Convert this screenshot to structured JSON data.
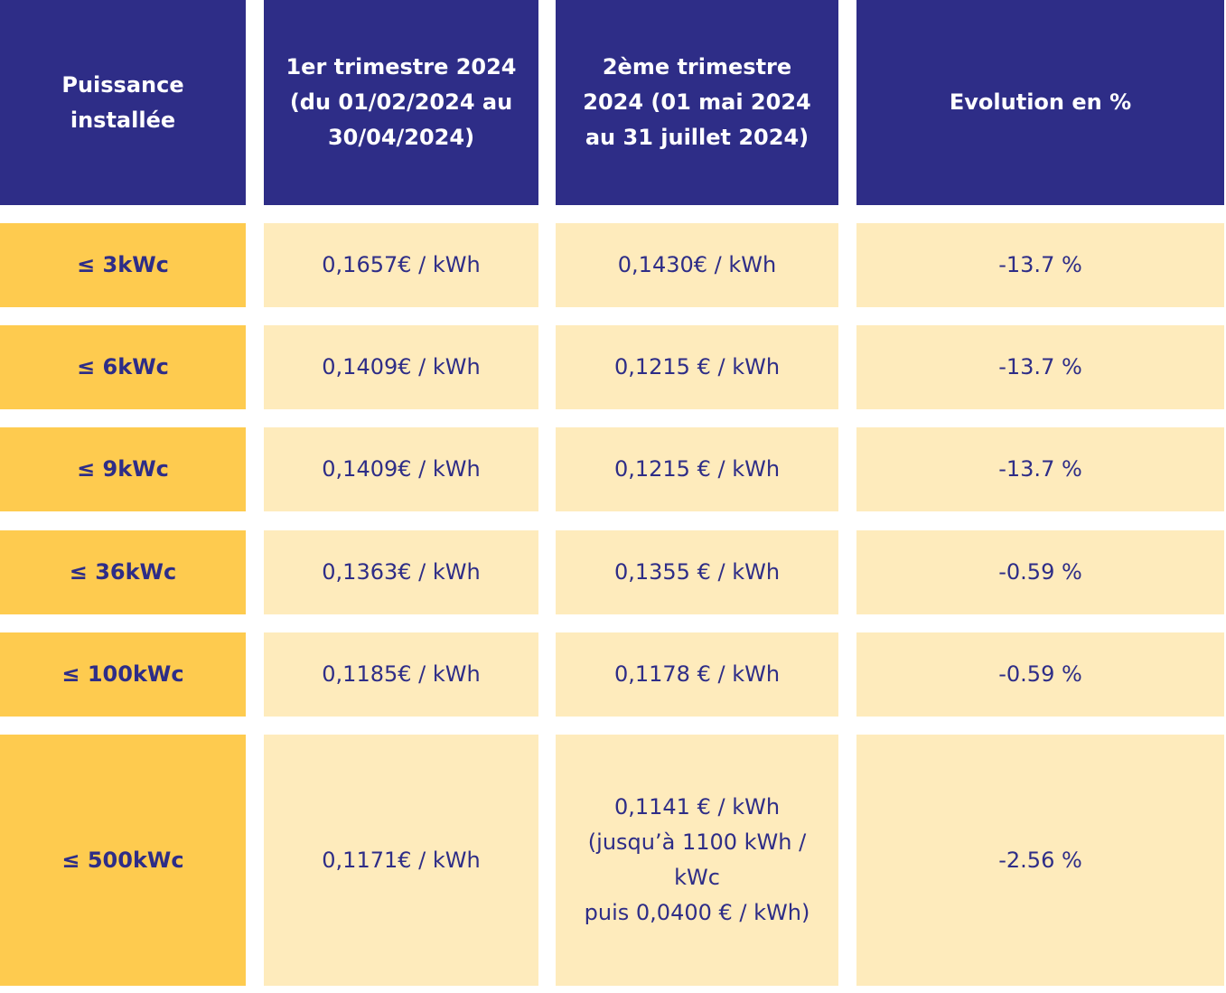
{
  "table": {
    "header": [
      "Puissance installée",
      "1er trimestre 2024 (du 01/02/2024 au 30/04/2024)",
      "2ème trimestre 2024 (01 mai 2024 au 31 juillet 2024)",
      "Evolution en %"
    ],
    "rows": [
      [
        "≤ 3kWc",
        "0,1657€ / kWh",
        "0,1430€ / kWh",
        "-13.7 %"
      ],
      [
        "≤ 6kWc",
        "0,1409€ / kWh",
        "0,1215 € / kWh",
        "-13.7 %"
      ],
      [
        "≤ 9kWc",
        "0,1409€ / kWh",
        "0,1215 € / kWh",
        "-13.7 %"
      ],
      [
        "≤ 36kWc",
        "0,1363€ / kWh",
        "0,1355 € / kWh",
        "-0.59 %"
      ],
      [
        "≤ 100kWc",
        "0,1185€ / kWh",
        "0,1178 € / kWh",
        "-0.59 %"
      ],
      [
        "≤ 500kWc",
        "0,1171€ / kWh",
        [
          "0,1141 € / kWh",
          "(jusqu’à 1100 kWh / kWc",
          "puis 0,0400 € / kWh)"
        ],
        "-2.56 %"
      ]
    ]
  }
}
